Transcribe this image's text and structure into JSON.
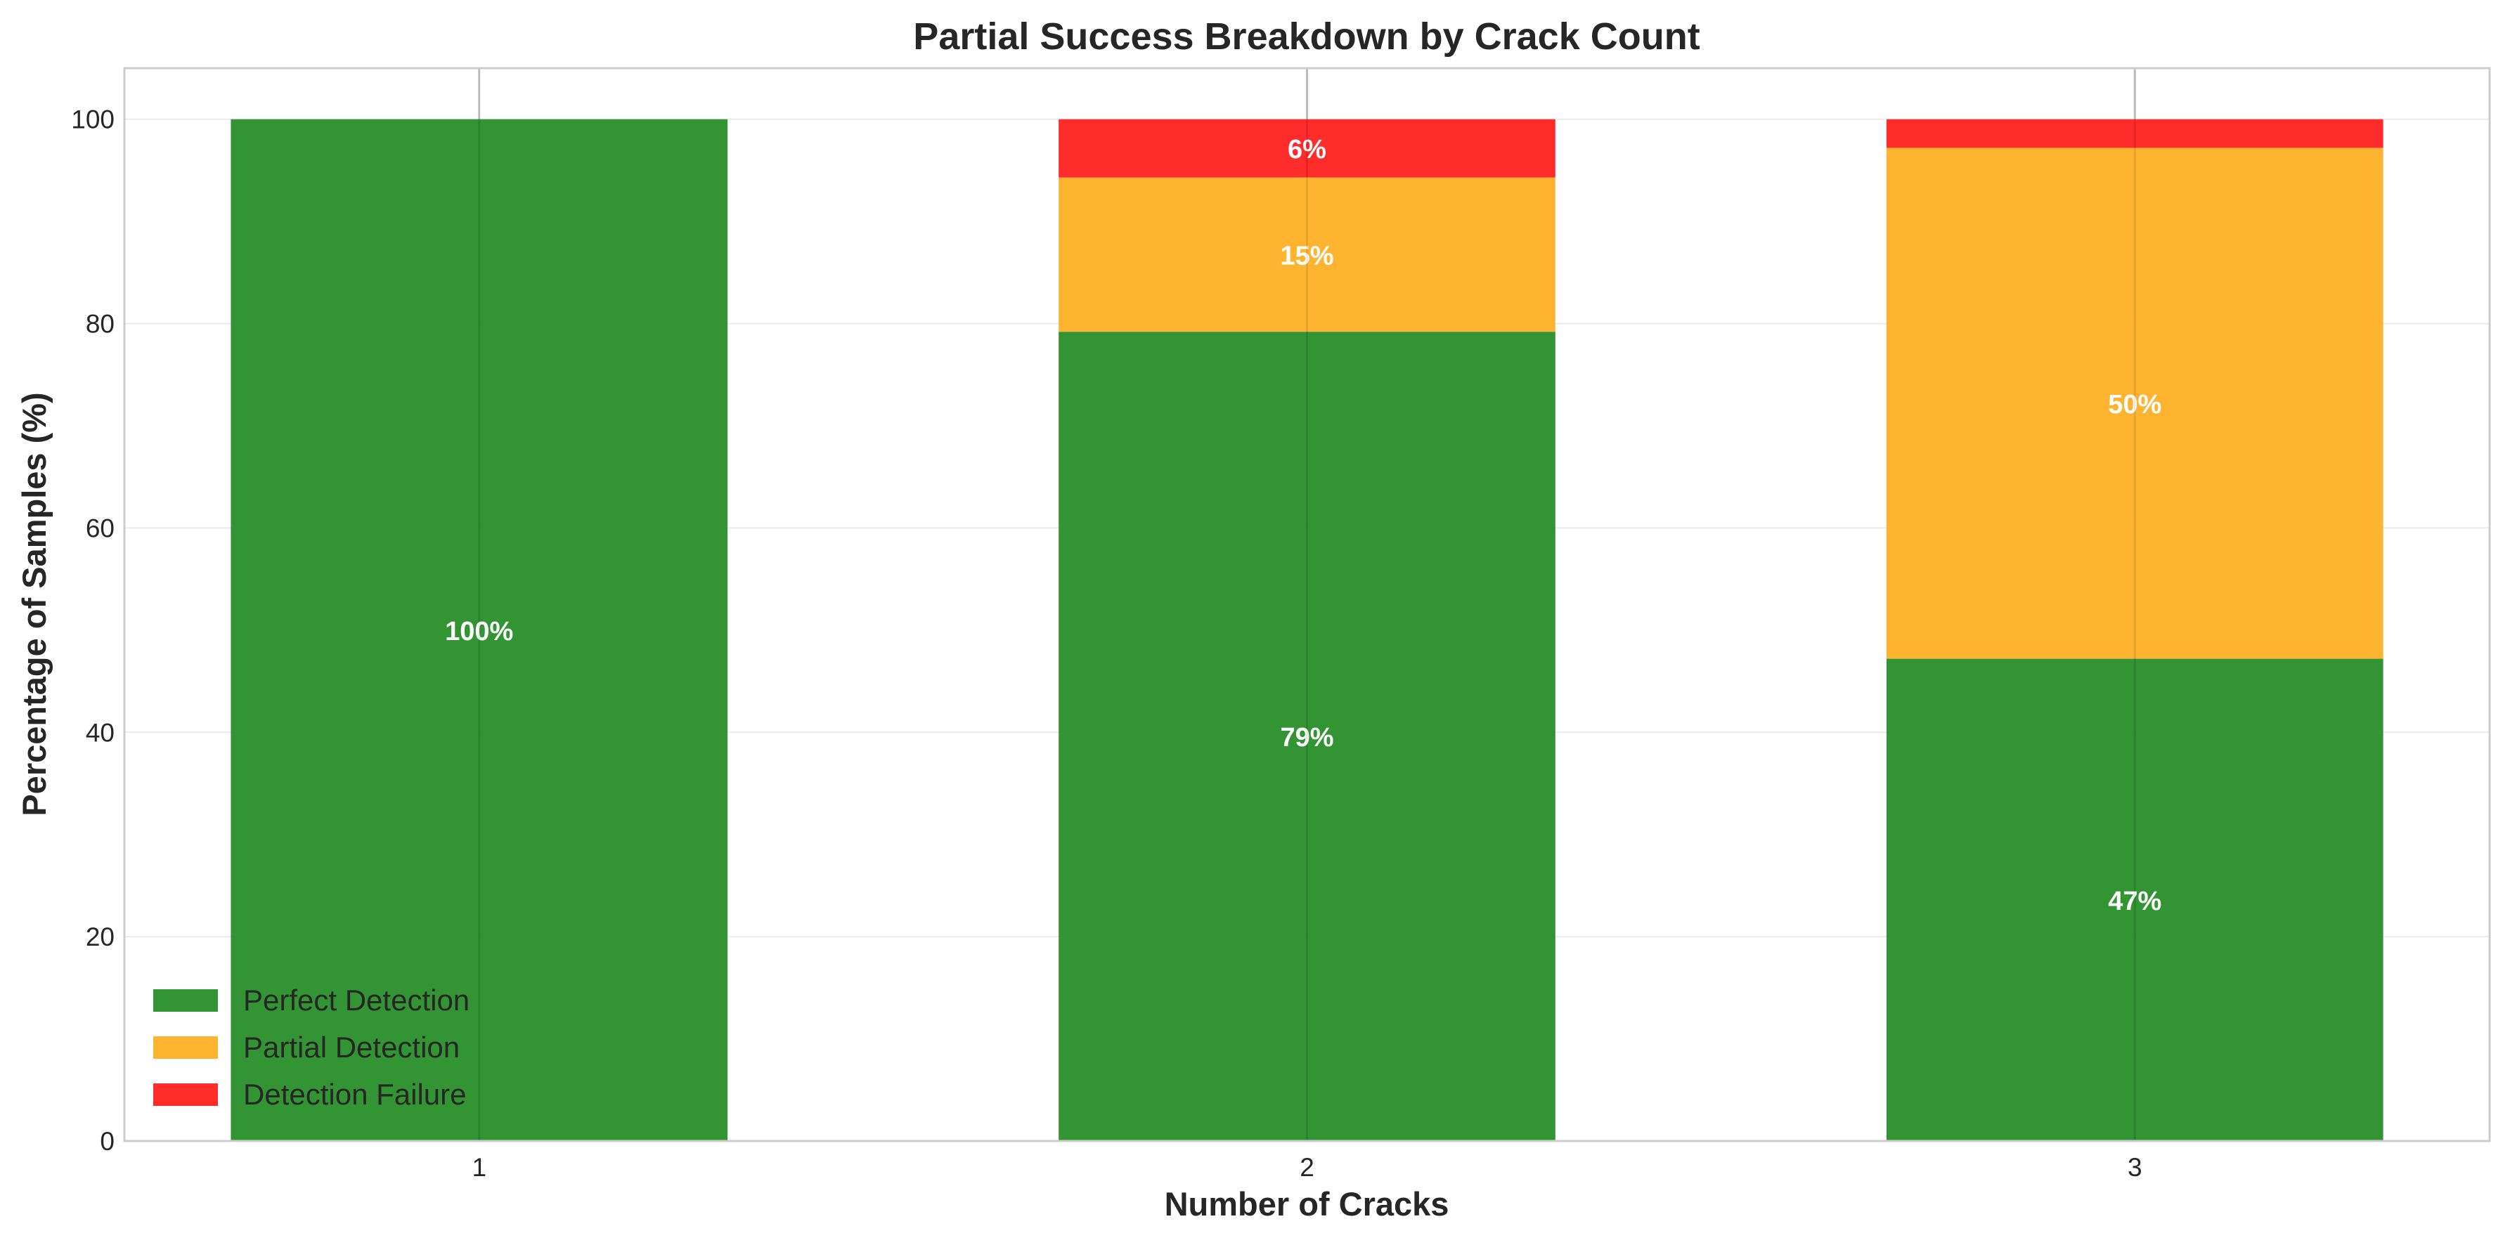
{
  "chart_data": {
    "type": "bar",
    "stacked": true,
    "title": "Partial Success Breakdown by Crack Count",
    "xlabel": "Number of Cracks",
    "ylabel": "Percentage of Samples (%)",
    "categories": [
      "1",
      "2",
      "3"
    ],
    "ylim": [
      0,
      105
    ],
    "yticks": [
      0,
      20,
      40,
      60,
      80,
      100
    ],
    "grid": true,
    "legend_position": "lower-left",
    "series": [
      {
        "name": "Perfect Detection",
        "color": "#228b22",
        "values": [
          100,
          79.2,
          47.2
        ],
        "labels": [
          "100%",
          "79%",
          "47%"
        ]
      },
      {
        "name": "Partial Detection",
        "color": "#ffae1f",
        "values": [
          0,
          15.1,
          50.0
        ],
        "labels": [
          "",
          "15%",
          "50%"
        ]
      },
      {
        "name": "Detection Failure",
        "color": "#ff1a1a",
        "values": [
          0,
          5.7,
          2.8
        ],
        "labels": [
          "",
          "6%",
          ""
        ]
      }
    ]
  }
}
